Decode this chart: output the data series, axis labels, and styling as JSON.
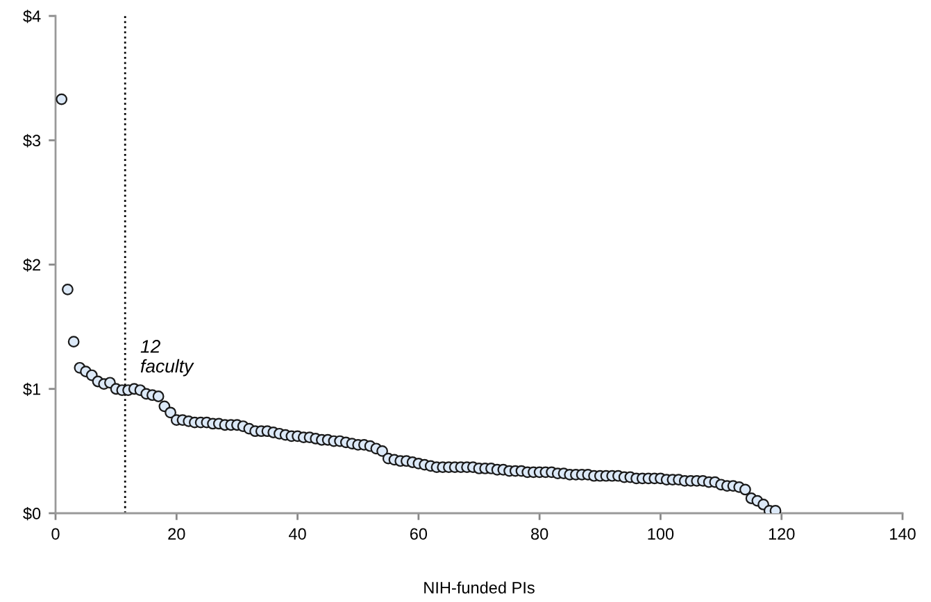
{
  "chart_data": {
    "type": "scatter",
    "xlabel": "NIH-funded PIs",
    "x": [
      1,
      2,
      3,
      4,
      5,
      6,
      7,
      8,
      9,
      10,
      11,
      12,
      13,
      14,
      15,
      16,
      17,
      18,
      19,
      20,
      21,
      22,
      23,
      24,
      25,
      26,
      27,
      28,
      29,
      30,
      31,
      32,
      33,
      34,
      35,
      36,
      37,
      38,
      39,
      40,
      41,
      42,
      43,
      44,
      45,
      46,
      47,
      48,
      49,
      50,
      51,
      52,
      53,
      54,
      55,
      56,
      57,
      58,
      59,
      60,
      61,
      62,
      63,
      64,
      65,
      66,
      67,
      68,
      69,
      70,
      71,
      72,
      73,
      74,
      75,
      76,
      77,
      78,
      79,
      80,
      81,
      82,
      83,
      84,
      85,
      86,
      87,
      88,
      89,
      90,
      91,
      92,
      93,
      94,
      95,
      96,
      97,
      98,
      99,
      100,
      101,
      102,
      103,
      104,
      105,
      106,
      107,
      108,
      109,
      110,
      111,
      112,
      113,
      114,
      115,
      116,
      117,
      118,
      119
    ],
    "series": [
      {
        "color": "#dce9f8",
        "values": [
          3.33,
          1.8,
          1.38,
          1.17,
          1.14,
          1.11,
          1.06,
          1.04,
          1.05,
          1.0,
          0.99,
          0.99,
          1.0,
          0.99,
          0.96,
          0.95,
          0.94,
          0.86,
          0.81,
          0.75,
          0.75,
          0.74,
          0.73,
          0.73,
          0.73,
          0.72,
          0.72,
          0.71,
          0.71,
          0.71,
          0.7,
          0.68,
          0.66,
          0.66,
          0.66,
          0.65,
          0.64,
          0.63,
          0.62,
          0.62,
          0.61,
          0.61,
          0.6,
          0.59,
          0.59,
          0.58,
          0.58,
          0.57,
          0.56,
          0.55,
          0.55,
          0.54,
          0.52,
          0.5,
          0.44,
          0.43,
          0.42,
          0.42,
          0.41,
          0.4,
          0.39,
          0.38,
          0.37,
          0.37,
          0.37,
          0.37,
          0.37,
          0.37,
          0.37,
          0.36,
          0.36,
          0.36,
          0.35,
          0.35,
          0.34,
          0.34,
          0.34,
          0.33,
          0.33,
          0.33,
          0.33,
          0.33,
          0.32,
          0.32,
          0.31,
          0.31,
          0.31,
          0.31,
          0.3,
          0.3,
          0.3,
          0.3,
          0.3,
          0.29,
          0.29,
          0.28,
          0.28,
          0.28,
          0.28,
          0.28,
          0.27,
          0.27,
          0.27,
          0.26,
          0.26,
          0.26,
          0.26,
          0.25,
          0.25,
          0.23,
          0.22,
          0.22,
          0.21,
          0.19,
          0.12,
          0.1,
          0.07,
          0.02,
          0.02
        ]
      }
    ],
    "xlim": [
      0,
      140
    ],
    "xticks": [
      0,
      20,
      40,
      60,
      80,
      100,
      120,
      140
    ],
    "ylim": [
      0,
      4
    ],
    "yticks": [
      {
        "value": 0,
        "label": "$0"
      },
      {
        "value": 1,
        "label": "$1"
      },
      {
        "value": 2,
        "label": "$2"
      },
      {
        "value": 3,
        "label": "$3"
      },
      {
        "value": 4,
        "label": "$4"
      }
    ],
    "ref_lines": [
      {
        "axis": "x",
        "value": 11.5,
        "label": "12\nfaculty",
        "color": "#000000",
        "line_style": "dotted"
      }
    ],
    "marker": "circle",
    "grid": false,
    "legend": false
  }
}
